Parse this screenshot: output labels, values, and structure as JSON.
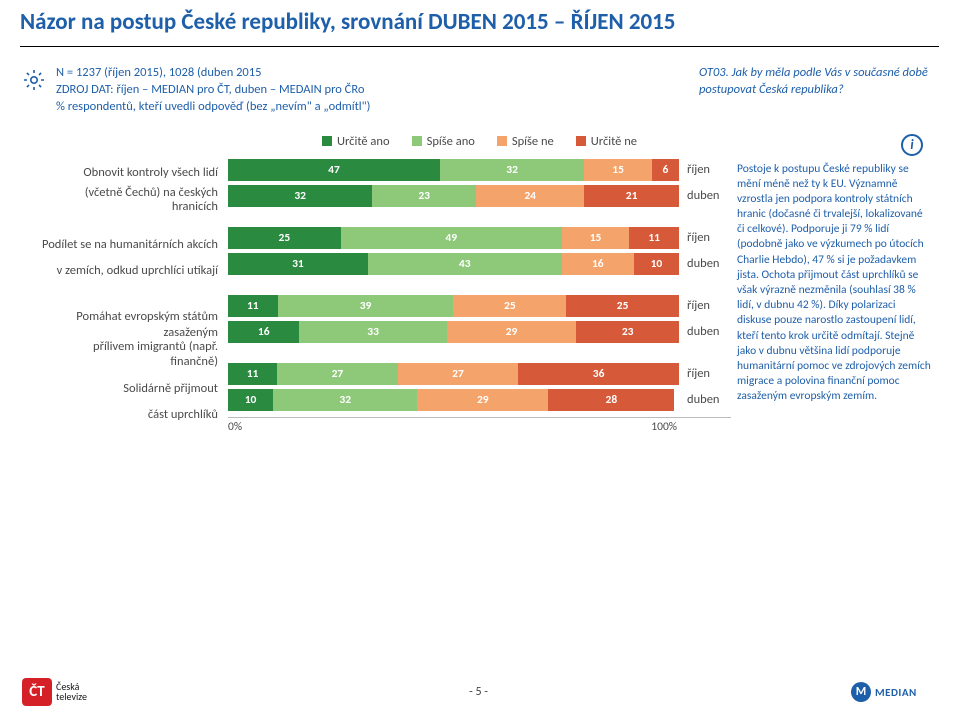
{
  "title": "Názor na postup České republiky, srovnání DUBEN 2015 – ŘÍJEN 2015",
  "meta_left_line1": "N = 1237 (říjen 2015), 1028 (duben 2015",
  "meta_left_line2": "ZDROJ DAT: říjen – MEDIAN pro ČT, duben – MEDAIN pro ČRo",
  "meta_left_line3": "% respondentů, kteří uvedli odpověď (bez „nevím\" a „odmítl\")",
  "meta_right": "OT03. Jak by měla podle Vás v současné době postupovat Česká republika?",
  "info_text": "Postoje k postupu České republiky se mění méně než ty k EU. Významně vzrostla jen podpora kontroly státních hranic (dočasné či trvalejší, lokalizované či celkové). Podporuje ji 79 % lidí (podobně jako ve výzkumech po útocích Charlie Hebdo), 47 % si je požadavkem jista. Ochota přijmout část uprchlíků se však výrazně nezměnila (souhlasí 38 % lidí, v dubnu 42 %). Díky polarizaci diskuse pouze narostlo zastoupení lidí, kteří tento krok určitě odmítají. Stejně jako v dubnu většina lidí podporuje humanitární pomoc ve zdrojových zemích migrace a polovina finanční pomoc zasaženým evropským zemím.",
  "legend": [
    "Určitě ano",
    "Spíše ano",
    "Spíše ne",
    "Určitě ne"
  ],
  "colors": {
    "cat0": "#2a8a3f",
    "cat1": "#8ec97a",
    "cat2": "#f4a36a",
    "cat3": "#d65a3a",
    "title": "#1e5faa"
  },
  "month_labels": {
    "rijen": "říjen",
    "duben": "duben"
  },
  "groups": [
    {
      "label_lines": [
        "Obnovit kontroly všech lidí",
        "(včetně Čechů) na českých",
        "hranicích"
      ],
      "rows": [
        {
          "month": "říjen",
          "values": [
            47,
            32,
            15,
            6
          ]
        },
        {
          "month": "duben",
          "values": [
            32,
            23,
            24,
            21
          ]
        }
      ]
    },
    {
      "label_lines": [
        "Podílet se na humanitárních akcích",
        "v zemích, odkud uprchlíci utíkají"
      ],
      "rows": [
        {
          "month": "říjen",
          "values": [
            25,
            49,
            15,
            11
          ]
        },
        {
          "month": "duben",
          "values": [
            31,
            43,
            16,
            10
          ]
        }
      ]
    },
    {
      "label_lines": [
        "Pomáhat evropským státům",
        "zasaženým",
        "přílivem imigrantů (např.",
        "finančně)"
      ],
      "rows": [
        {
          "month": "říjen",
          "values": [
            11,
            39,
            25,
            25
          ]
        },
        {
          "month": "duben",
          "values": [
            16,
            33,
            29,
            23
          ]
        }
      ]
    },
    {
      "label_lines": [
        "Solidárně přijmout",
        "část uprchlíků"
      ],
      "rows": [
        {
          "month": "říjen",
          "values": [
            11,
            27,
            27,
            36
          ]
        },
        {
          "month": "duben",
          "values": [
            10,
            32,
            29,
            28
          ]
        }
      ]
    }
  ],
  "axis": {
    "min_label": "0%",
    "max_label": "100%"
  },
  "page_number": "- 5 -",
  "logos": {
    "ct_mark": "ČT",
    "ct_name_line1": "Česká",
    "ct_name_line2": "televize",
    "median_mark": "M",
    "median_name": "MEDIAN"
  }
}
